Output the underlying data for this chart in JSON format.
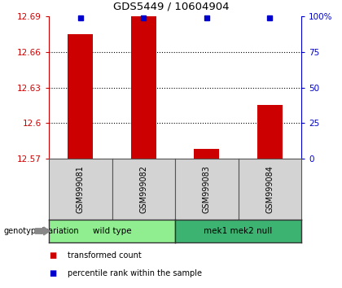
{
  "title": "GDS5449 / 10604904",
  "samples": [
    "GSM999081",
    "GSM999082",
    "GSM999083",
    "GSM999084"
  ],
  "red_values": [
    12.675,
    12.69,
    12.578,
    12.615
  ],
  "blue_values": [
    99,
    99,
    99,
    99
  ],
  "ylim_left": [
    12.57,
    12.69
  ],
  "ylim_right": [
    0,
    100
  ],
  "yticks_left": [
    12.57,
    12.6,
    12.63,
    12.66,
    12.69
  ],
  "yticks_right": [
    0,
    25,
    50,
    75,
    100
  ],
  "ytick_labels_right": [
    "0",
    "25",
    "50",
    "75",
    "100%"
  ],
  "groups": [
    {
      "label": "wild type",
      "samples": [
        0,
        1
      ],
      "color": "#90EE90"
    },
    {
      "label": "mek1 mek2 null",
      "samples": [
        2,
        3
      ],
      "color": "#3CB371"
    }
  ],
  "group_label_prefix": "genotype/variation",
  "bar_width": 0.4,
  "red_color": "#CC0000",
  "blue_color": "#0000CC",
  "left_axis_color": "#CC0000",
  "right_axis_color": "#0000CC",
  "sample_box_color": "#D3D3D3",
  "legend_items": [
    {
      "color": "#CC0000",
      "label": "transformed count"
    },
    {
      "color": "#0000CC",
      "label": "percentile rank within the sample"
    }
  ]
}
